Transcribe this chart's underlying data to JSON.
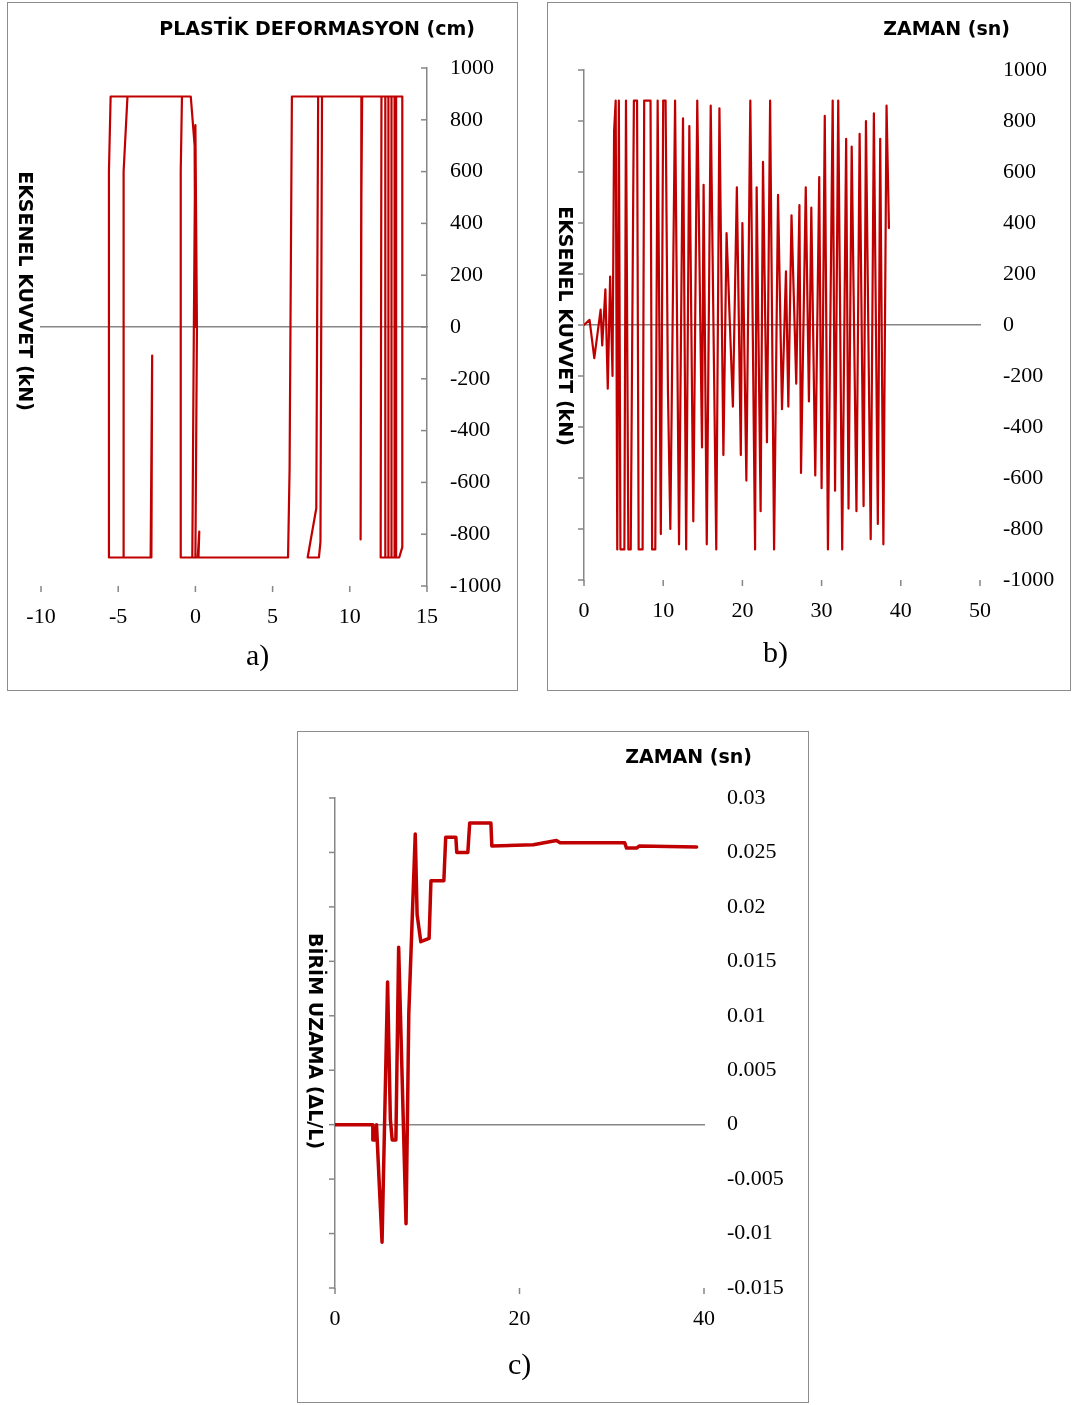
{
  "chart_data": [
    {
      "type": "line",
      "xlabel": "PLASTİK DEFORMASYON (cm)",
      "ylabel": "EKSENEL KUVVET (kN)",
      "annotations": [
        "a)"
      ],
      "xlim": [
        -10,
        15
      ],
      "ylim": [
        -1000,
        1000
      ],
      "xticks": [
        -10,
        -5,
        0,
        5,
        10,
        15
      ],
      "yticks": [
        -1000,
        -800,
        -600,
        -400,
        -200,
        0,
        200,
        400,
        600,
        800,
        1000
      ],
      "legend": false,
      "marker": "none",
      "x": [
        0,
        -0.05,
        -0.3,
        -5.49,
        -5.6,
        -5.6,
        -2.85,
        -2.8,
        -2.9,
        -4.65,
        -4.65,
        -4.4,
        -0.87,
        -0.95,
        -0.95,
        0.2,
        0.25,
        0.15,
        -0.2,
        -0.1,
        0,
        0.1,
        0,
        6,
        6.1,
        6.25,
        8.2,
        8.1,
        8,
        7.27,
        7.83,
        7.95,
        10.75,
        10.7,
        10.75,
        10.8,
        13.4,
        13.4,
        13.2,
        12,
        12,
        12.05,
        12.3,
        12.3,
        12.5,
        12.5,
        12.7,
        12.7,
        12.9,
        12.9,
        13,
        13
      ],
      "series": [
        {
          "color": "#c00000",
          "values": [
            0,
            700,
            890,
            890,
            600,
            -890,
            -890,
            -110,
            -890,
            -890,
            600,
            890,
            890,
            600,
            -890,
            -890,
            -790,
            -890,
            -890,
            0,
            780,
            0,
            -890,
            -890,
            -550,
            890,
            890,
            -830,
            -890,
            -890,
            -700,
            890,
            890,
            -820,
            500,
            890,
            890,
            -850,
            -890,
            -890,
            -800,
            890,
            890,
            -890,
            -890,
            890,
            890,
            -890,
            -890,
            890,
            890,
            -890
          ]
        }
      ]
    },
    {
      "type": "line",
      "xlabel": "ZAMAN (sn)",
      "ylabel": "EKSENEL KUVVET (kN)",
      "annotations": [
        "b)"
      ],
      "xlim": [
        0,
        50
      ],
      "ylim": [
        -1000,
        1000
      ],
      "xticks": [
        0,
        10,
        20,
        30,
        40,
        50
      ],
      "yticks": [
        -1000,
        -800,
        -600,
        -400,
        -200,
        0,
        200,
        400,
        600,
        800,
        1000
      ],
      "legend": false,
      "marker": "none",
      "x": [
        0,
        0.7,
        1.3,
        2.1,
        2.3,
        2.7,
        3.0,
        3.3,
        3.6,
        3.8,
        4.0,
        4.2,
        4.4,
        4.6,
        5.1,
        5.3,
        5.6,
        5.9,
        6.3,
        6.7,
        6.9,
        7.4,
        7.6,
        8.4,
        8.6,
        9.0,
        9.3,
        9.7,
        10.0,
        10.3,
        10.6,
        10.9,
        11.5,
        12.0,
        12.5,
        12.9,
        13.3,
        13.8,
        14.3,
        14.9,
        15.1,
        15.5,
        16.0,
        16.7,
        17.1,
        17.6,
        18.0,
        18.8,
        19.3,
        19.8,
        20.0,
        20.5,
        21.0,
        21.6,
        21.8,
        22.3,
        22.6,
        23.1,
        23.5,
        24.0,
        24.5,
        25.0,
        25.5,
        25.8,
        26.2,
        26.8,
        27.2,
        27.4,
        28.0,
        28.4,
        28.7,
        29.2,
        29.7,
        30.0,
        30.4,
        30.8,
        31.4,
        31.7,
        32.1,
        32.6,
        33.1,
        33.4,
        33.8,
        34.4,
        34.8,
        35.3,
        35.6,
        36.2,
        36.6,
        37.1,
        37.4,
        37.8,
        38.2,
        38.5
      ],
      "series": [
        {
          "color": "#c00000",
          "values": [
            0,
            20,
            -130,
            60,
            -80,
            140,
            -250,
            190,
            -200,
            760,
            880,
            -880,
            880,
            -880,
            -880,
            880,
            -880,
            -880,
            880,
            880,
            -880,
            -880,
            880,
            880,
            -880,
            -880,
            880,
            -820,
            880,
            880,
            -260,
            -800,
            880,
            -860,
            810,
            -880,
            780,
            -770,
            880,
            -480,
            550,
            -860,
            860,
            -880,
            850,
            -510,
            360,
            -320,
            540,
            -510,
            400,
            -610,
            880,
            -880,
            540,
            -730,
            640,
            -460,
            880,
            -880,
            510,
            -330,
            210,
            -320,
            430,
            -230,
            470,
            -580,
            540,
            -300,
            460,
            -590,
            580,
            -640,
            820,
            -880,
            880,
            -650,
            880,
            -880,
            730,
            -720,
            700,
            -730,
            750,
            -710,
            800,
            -840,
            830,
            -780,
            730,
            -860,
            860,
            380
          ]
        }
      ]
    },
    {
      "type": "line",
      "xlabel": "ZAMAN (sn)",
      "ylabel": "BİRİM UZAMA (ΔL/L)",
      "annotations": [
        "c)"
      ],
      "xlim": [
        0,
        40
      ],
      "ylim": [
        -0.015,
        0.03
      ],
      "xticks": [
        0,
        20,
        40
      ],
      "yticks": [
        -0.015,
        -0.01,
        -0.005,
        0,
        0.005,
        0.01,
        0.015,
        0.02,
        0.025,
        0.03
      ],
      "legend": false,
      "marker": "none",
      "x": [
        0,
        4.1,
        4.1,
        4.4,
        4.5,
        4.8,
        5.1,
        5.7,
        6.0,
        6.2,
        6.6,
        6.9,
        7.7,
        8.0,
        8.7,
        8.9,
        9.3,
        10.2,
        10.4,
        11.8,
        12.0,
        13.1,
        13.2,
        14.4,
        14.6,
        16.9,
        17.0,
        21.5,
        24.0,
        24.4,
        31.4,
        31.6,
        32.7,
        33.0,
        39.2
      ],
      "series": [
        {
          "color": "#c00000",
          "values": [
            0,
            0,
            -0.0014,
            -0.0014,
            0,
            -0.0055,
            -0.0108,
            0.0131,
            0.0005,
            -0.0014,
            -0.0014,
            0.0163,
            -0.0091,
            0.0102,
            0.0267,
            0.0193,
            0.0168,
            0.0171,
            0.0224,
            0.0224,
            0.0264,
            0.0264,
            0.025,
            0.025,
            0.0277,
            0.0277,
            0.0256,
            0.0257,
            0.0261,
            0.0259,
            0.0259,
            0.0254,
            0.0254,
            0.0256,
            0.0255
          ]
        }
      ]
    }
  ]
}
